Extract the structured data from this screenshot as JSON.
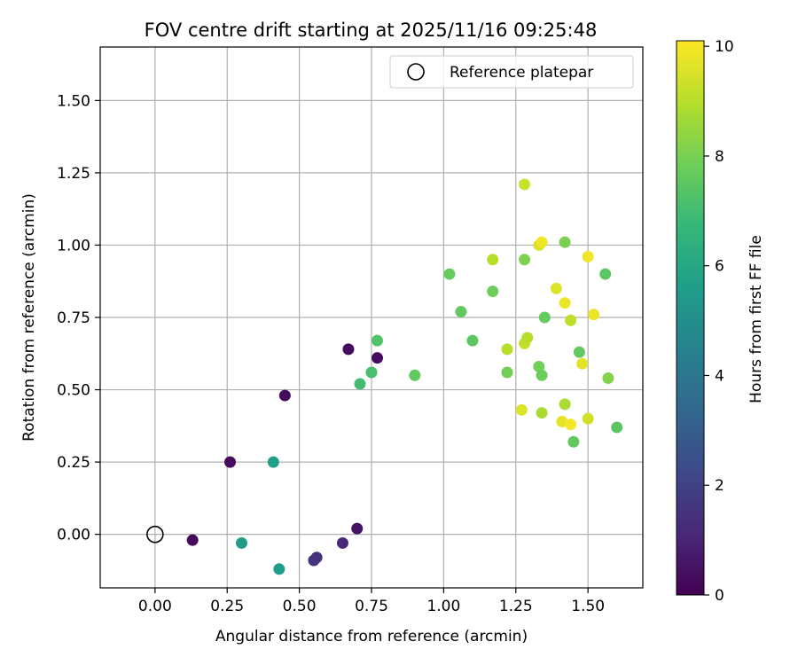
{
  "chart_data": {
    "type": "scatter",
    "title": "FOV centre drift starting at 2025/11/16 09:25:48",
    "xlabel": "Angular distance from reference (arcmin)",
    "ylabel": "Rotation from reference (arcmin)",
    "xlim": [
      -0.19,
      1.69
    ],
    "ylim": [
      -0.185,
      1.685
    ],
    "xticks": [
      0.0,
      0.25,
      0.5,
      0.75,
      1.0,
      1.25,
      1.5
    ],
    "xtick_labels": [
      "0.00",
      "0.25",
      "0.50",
      "0.75",
      "1.00",
      "1.25",
      "1.50"
    ],
    "yticks": [
      0.0,
      0.25,
      0.5,
      0.75,
      1.0,
      1.25,
      1.5
    ],
    "ytick_labels": [
      "0.00",
      "0.25",
      "0.50",
      "0.75",
      "1.00",
      "1.25",
      "1.50"
    ],
    "grid": true,
    "legend": {
      "location": "top-right",
      "entries": [
        "Reference platepar"
      ]
    },
    "reference": {
      "x": 0.0,
      "y": 0.0,
      "label": "Reference platepar"
    },
    "colorbar": {
      "label": "Hours from first FF file",
      "range": [
        0,
        10.1
      ],
      "ticks": [
        0,
        2,
        4,
        6,
        8,
        10
      ],
      "tick_labels": [
        "0",
        "2",
        "4",
        "6",
        "8",
        "10"
      ],
      "colormap": "viridis",
      "colormap_stops": [
        "#440154",
        "#482878",
        "#3e4989",
        "#31688e",
        "#26828e",
        "#1f9e89",
        "#35b779",
        "#6ece58",
        "#b5de2b",
        "#fde725"
      ]
    },
    "points": [
      {
        "x": 0.13,
        "y": -0.02,
        "h": 0.2
      },
      {
        "x": 0.26,
        "y": 0.25,
        "h": 0.3
      },
      {
        "x": 0.45,
        "y": 0.48,
        "h": 0.3
      },
      {
        "x": 0.67,
        "y": 0.64,
        "h": 0.3
      },
      {
        "x": 0.77,
        "y": 0.61,
        "h": 0.3
      },
      {
        "x": 0.7,
        "y": 0.02,
        "h": 0.5
      },
      {
        "x": 0.65,
        "y": -0.03,
        "h": 1.2
      },
      {
        "x": 0.56,
        "y": -0.08,
        "h": 1.4
      },
      {
        "x": 0.55,
        "y": -0.09,
        "h": 1.5
      },
      {
        "x": 0.3,
        "y": -0.03,
        "h": 5.5
      },
      {
        "x": 0.43,
        "y": -0.12,
        "h": 5.6
      },
      {
        "x": 0.41,
        "y": 0.25,
        "h": 5.7
      },
      {
        "x": 0.71,
        "y": 0.52,
        "h": 7.0
      },
      {
        "x": 0.75,
        "y": 0.56,
        "h": 7.1
      },
      {
        "x": 0.77,
        "y": 0.67,
        "h": 7.3
      },
      {
        "x": 0.9,
        "y": 0.55,
        "h": 7.6
      },
      {
        "x": 1.02,
        "y": 0.9,
        "h": 7.7
      },
      {
        "x": 1.06,
        "y": 0.77,
        "h": 7.6
      },
      {
        "x": 1.1,
        "y": 0.67,
        "h": 7.5
      },
      {
        "x": 1.17,
        "y": 0.84,
        "h": 7.8
      },
      {
        "x": 1.22,
        "y": 0.56,
        "h": 7.9
      },
      {
        "x": 1.28,
        "y": 0.95,
        "h": 8.1
      },
      {
        "x": 1.33,
        "y": 0.58,
        "h": 7.9
      },
      {
        "x": 1.34,
        "y": 0.55,
        "h": 7.8
      },
      {
        "x": 1.35,
        "y": 0.75,
        "h": 7.7
      },
      {
        "x": 1.42,
        "y": 1.01,
        "h": 8.0
      },
      {
        "x": 1.45,
        "y": 0.32,
        "h": 7.6
      },
      {
        "x": 1.47,
        "y": 0.63,
        "h": 7.6
      },
      {
        "x": 1.56,
        "y": 0.9,
        "h": 7.5
      },
      {
        "x": 1.57,
        "y": 0.54,
        "h": 8.2
      },
      {
        "x": 1.6,
        "y": 0.37,
        "h": 7.5
      },
      {
        "x": 1.17,
        "y": 0.95,
        "h": 9.0
      },
      {
        "x": 1.22,
        "y": 0.64,
        "h": 9.0
      },
      {
        "x": 1.28,
        "y": 1.21,
        "h": 9.3
      },
      {
        "x": 1.28,
        "y": 0.66,
        "h": 9.2
      },
      {
        "x": 1.29,
        "y": 0.68,
        "h": 9.0
      },
      {
        "x": 1.33,
        "y": 1.0,
        "h": 9.5
      },
      {
        "x": 1.34,
        "y": 0.42,
        "h": 8.8
      },
      {
        "x": 1.42,
        "y": 0.45,
        "h": 8.8
      },
      {
        "x": 1.44,
        "y": 0.74,
        "h": 9.1
      },
      {
        "x": 1.27,
        "y": 0.43,
        "h": 9.6
      },
      {
        "x": 1.34,
        "y": 1.01,
        "h": 9.9
      },
      {
        "x": 1.39,
        "y": 0.85,
        "h": 9.6
      },
      {
        "x": 1.41,
        "y": 0.39,
        "h": 9.7
      },
      {
        "x": 1.42,
        "y": 0.8,
        "h": 9.8
      },
      {
        "x": 1.44,
        "y": 0.38,
        "h": 10.0
      },
      {
        "x": 1.48,
        "y": 0.59,
        "h": 9.7
      },
      {
        "x": 1.5,
        "y": 0.96,
        "h": 9.9
      },
      {
        "x": 1.5,
        "y": 0.4,
        "h": 9.4
      },
      {
        "x": 1.52,
        "y": 0.76,
        "h": 9.8
      }
    ]
  }
}
